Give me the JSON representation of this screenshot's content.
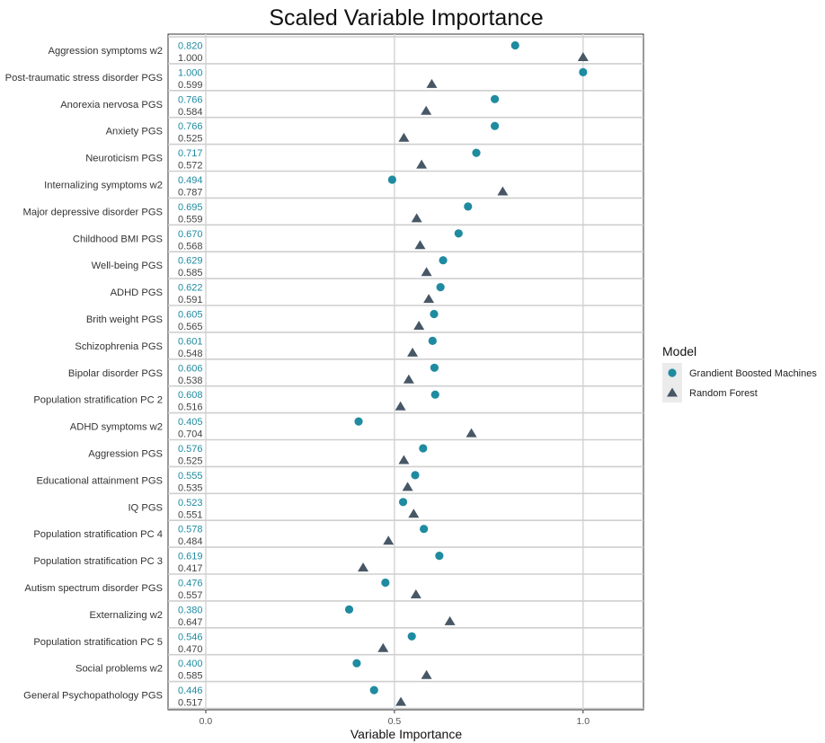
{
  "chart_data": {
    "type": "scatter",
    "title": "Scaled Variable Importance",
    "xlabel": "Variable Importance",
    "ylabel": "",
    "xlim": [
      -0.1,
      1.16
    ],
    "x_ticks": [
      "0.0",
      "0.5",
      "1.0"
    ],
    "grid": true,
    "legend": {
      "title": "Model",
      "position": "right",
      "entries": [
        {
          "name": "Grandient Boosted Machines",
          "marker": "circle",
          "color": "#1f8ba0"
        },
        {
          "name": "Random Forest",
          "marker": "triangle",
          "color": "#475766"
        }
      ]
    },
    "categories": [
      "Aggression symptoms w2",
      "Post-traumatic stress disorder PGS",
      "Anorexia nervosa PGS",
      "Anxiety PGS",
      "Neuroticism PGS",
      "Internalizing symptoms w2",
      "Major depressive disorder PGS",
      "Childhood BMI PGS",
      "Well-being PGS",
      "ADHD PGS",
      "Brith weight PGS",
      "Schizophrenia PGS",
      "Bipolar disorder PGS",
      "Population stratification PC 2",
      "ADHD symptoms w2",
      "Aggression PGS",
      "Educational attainment PGS",
      "IQ PGS",
      "Population stratification PC 4",
      "Population stratification PC 3",
      "Autism spectrum disorder PGS",
      "Externalizing w2",
      "Population stratification PC 5",
      "Social problems w2",
      "General Psychopathology PGS"
    ],
    "series": [
      {
        "name": "Grandient Boosted Machines",
        "values": [
          0.82,
          1.0,
          0.766,
          0.766,
          0.717,
          0.494,
          0.695,
          0.67,
          0.629,
          0.622,
          0.605,
          0.601,
          0.606,
          0.608,
          0.405,
          0.576,
          0.555,
          0.523,
          0.578,
          0.619,
          0.476,
          0.38,
          0.546,
          0.4,
          0.446
        ],
        "labels": [
          "0.820",
          "1.000",
          "0.766",
          "0.766",
          "0.717",
          "0.494",
          "0.695",
          "0.670",
          "0.629",
          "0.622",
          "0.605",
          "0.601",
          "0.606",
          "0.608",
          "0.405",
          "0.576",
          "0.555",
          "0.523",
          "0.578",
          "0.619",
          "0.476",
          "0.380",
          "0.546",
          "0.400",
          "0.446"
        ]
      },
      {
        "name": "Random Forest",
        "values": [
          1.0,
          0.599,
          0.584,
          0.525,
          0.572,
          0.787,
          0.559,
          0.568,
          0.585,
          0.591,
          0.565,
          0.548,
          0.538,
          0.516,
          0.704,
          0.525,
          0.535,
          0.551,
          0.484,
          0.417,
          0.557,
          0.647,
          0.47,
          0.585,
          0.517
        ],
        "labels": [
          "1.000",
          "0.599",
          "0.584",
          "0.525",
          "0.572",
          "0.787",
          "0.559",
          "0.568",
          "0.585",
          "0.591",
          "0.565",
          "0.548",
          "0.538",
          "0.516",
          "0.704",
          "0.525",
          "0.535",
          "0.551",
          "0.484",
          "0.417",
          "0.557",
          "0.647",
          "0.470",
          "0.585",
          "0.517"
        ]
      }
    ]
  }
}
